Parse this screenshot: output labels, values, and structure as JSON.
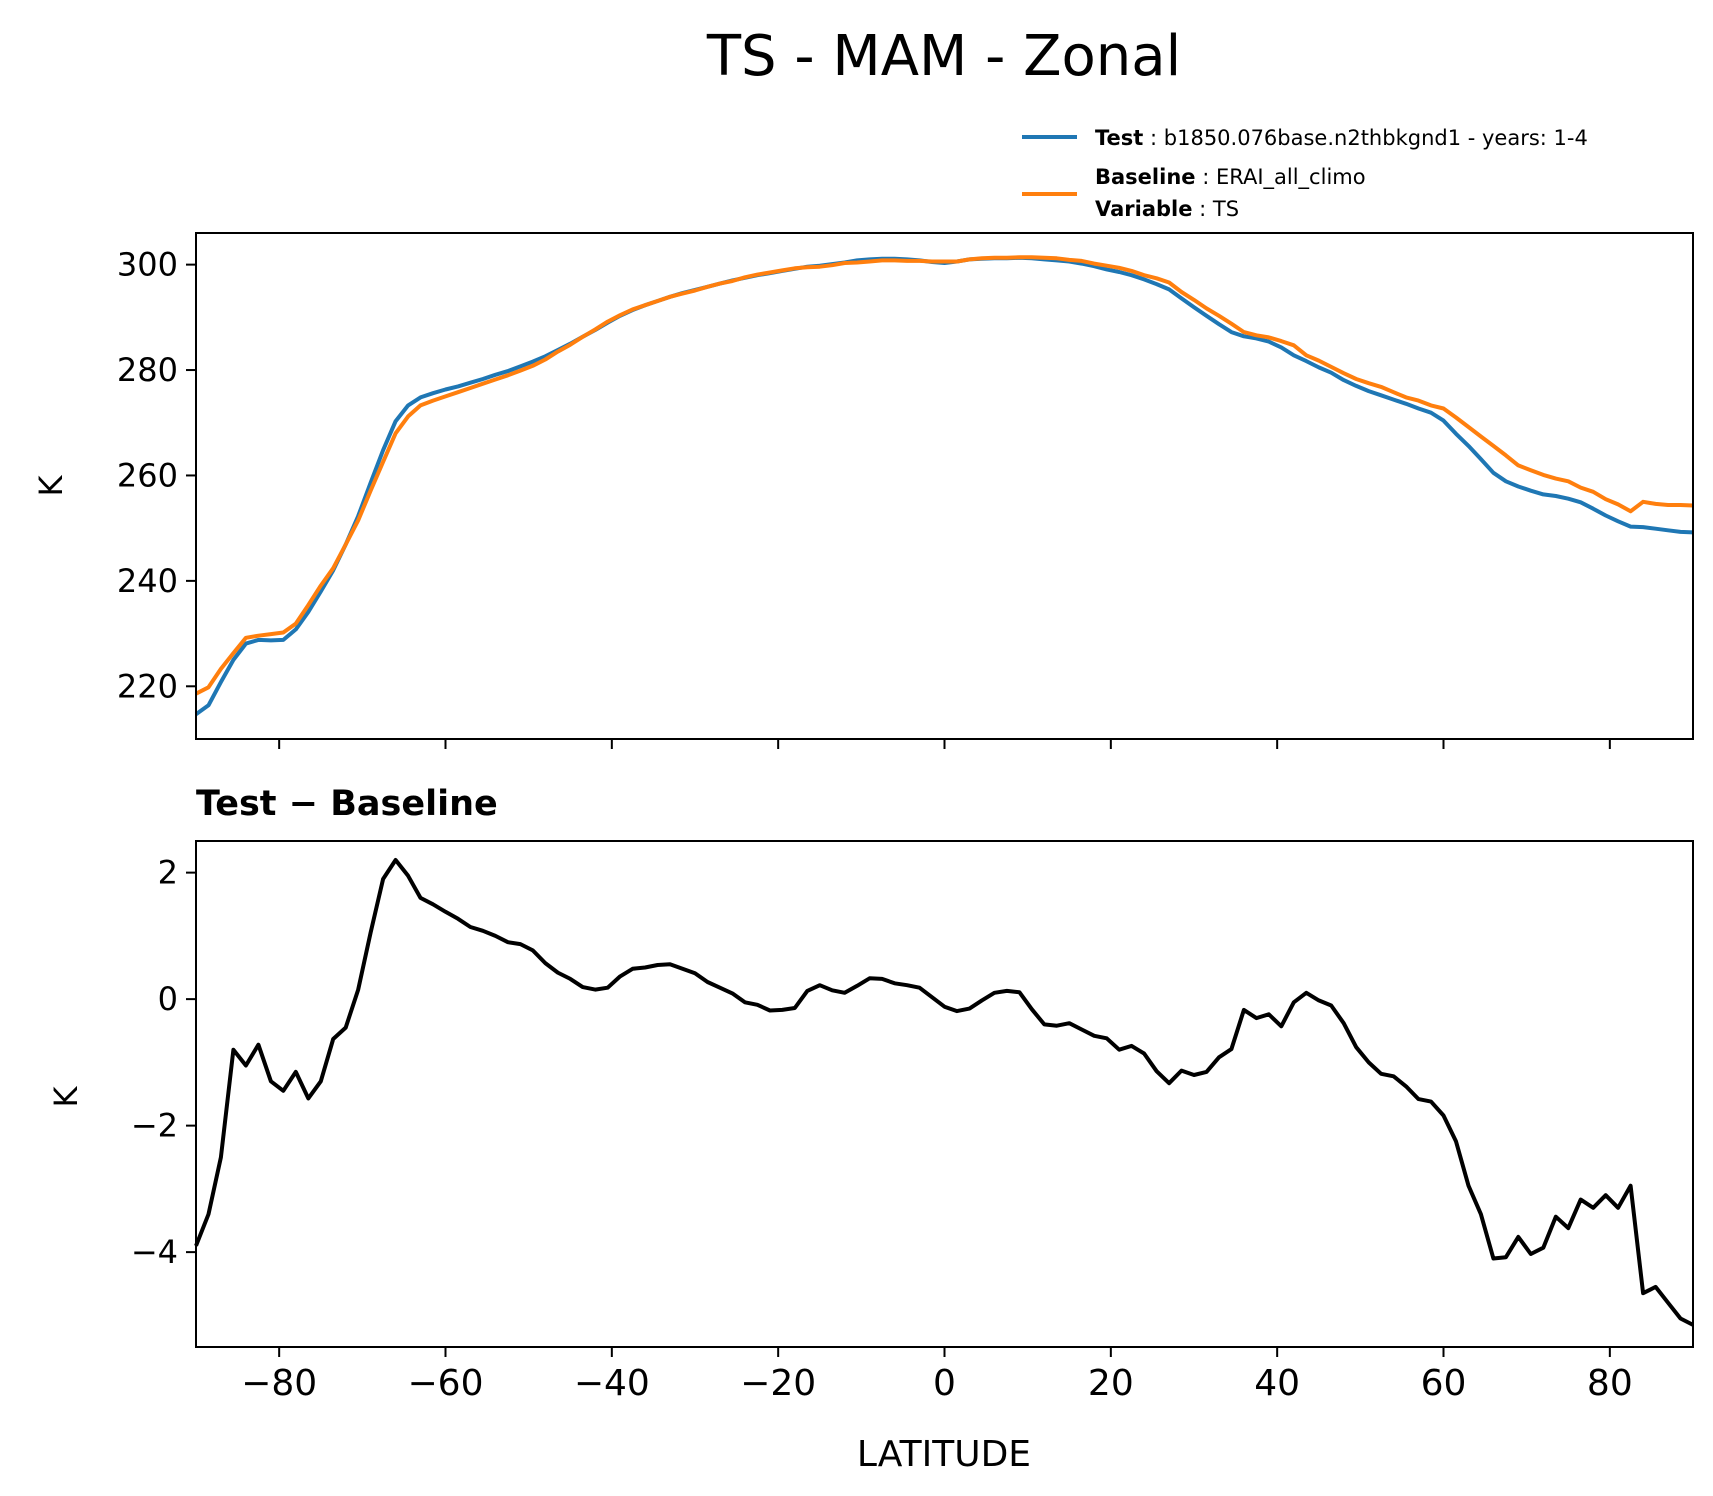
{
  "figure_title": "TS - MAM - Zonal",
  "legend": {
    "test": {
      "key": "Test",
      "value": ": b1850.076base.n2thbkgnd1 - years: 1-4"
    },
    "baseline": {
      "key": "Baseline",
      "value": ": ERAI_all_climo"
    },
    "variable": {
      "key": "Variable",
      "value": ": TS"
    }
  },
  "colors": {
    "test": "#1f77b4",
    "baseline": "#ff7f0e",
    "difference": "#000000"
  },
  "chart_data": [
    {
      "type": "line",
      "title": "",
      "xlabel": "",
      "ylabel": "K",
      "xlim": [
        -90,
        90
      ],
      "ylim": [
        210,
        306
      ],
      "xticks": [
        -80,
        -60,
        -40,
        -20,
        0,
        20,
        40,
        60,
        80
      ],
      "yticks": [
        220,
        240,
        260,
        280,
        300
      ],
      "ytick_labels": [
        "220",
        "240",
        "260",
        "280",
        "300"
      ],
      "x": [
        -90,
        -88.5,
        -87,
        -85.5,
        -84,
        -82.5,
        -81,
        -79.5,
        -78,
        -76.5,
        -75,
        -73.5,
        -72,
        -70.5,
        -69,
        -67.5,
        -66,
        -64.5,
        -63,
        -61.5,
        -60,
        -58.5,
        -57,
        -55.5,
        -54,
        -52.5,
        -51,
        -49.5,
        -48,
        -46.5,
        -45,
        -43.5,
        -42,
        -40.5,
        -39,
        -37.5,
        -36,
        -34.5,
        -33,
        -31.5,
        -30,
        -28.5,
        -27,
        -25.5,
        -24,
        -22.5,
        -21,
        -19.5,
        -18,
        -16.5,
        -15,
        -13.5,
        -12,
        -10.5,
        -9,
        -7.5,
        -6,
        -4.5,
        -3,
        -1.5,
        0,
        1.5,
        3,
        4.5,
        6,
        7.5,
        9,
        10.5,
        12,
        13.5,
        15,
        16.5,
        18,
        19.5,
        21,
        22.5,
        24,
        25.5,
        27,
        28.5,
        30,
        31.5,
        33,
        34.5,
        36,
        37.5,
        39,
        40.5,
        42,
        43.5,
        45,
        46.5,
        48,
        49.5,
        51,
        52.5,
        54,
        55.5,
        57,
        58.5,
        60,
        61.5,
        63,
        64.5,
        66,
        67.5,
        69,
        70.5,
        72,
        73.5,
        75,
        76.5,
        78,
        79.5,
        81,
        82.5,
        84,
        85.5,
        87,
        88.5,
        90
      ],
      "series": [
        {
          "name": "Test",
          "values": [
            214.7,
            216.4,
            220.8,
            225.0,
            228.1,
            228.8,
            228.7,
            228.8,
            230.8,
            234.1,
            238.0,
            242.0,
            246.9,
            252.3,
            258.6,
            264.8,
            270.3,
            273.3,
            274.8,
            275.6,
            276.3,
            276.9,
            277.6,
            278.3,
            279.1,
            279.8,
            280.7,
            281.6,
            282.6,
            283.8,
            285.0,
            286.3,
            287.6,
            289.0,
            290.3,
            291.4,
            292.3,
            293.1,
            293.9,
            294.6,
            295.2,
            295.8,
            296.4,
            297.0,
            297.5,
            298.0,
            298.4,
            298.8,
            299.2,
            299.6,
            299.8,
            300.1,
            300.4,
            300.8,
            301.0,
            301.1,
            301.1,
            301.0,
            300.8,
            300.5,
            300.3,
            300.6,
            301.0,
            301.1,
            301.2,
            301.2,
            301.3,
            301.2,
            301.0,
            300.8,
            300.6,
            300.2,
            299.7,
            299.1,
            298.6,
            298.0,
            297.2,
            296.3,
            295.3,
            293.6,
            291.9,
            290.3,
            288.7,
            287.2,
            286.4,
            286.0,
            285.4,
            284.3,
            282.8,
            281.7,
            280.5,
            279.5,
            278.1,
            277.0,
            276.0,
            275.2,
            274.4,
            273.6,
            272.7,
            271.9,
            270.4,
            267.9,
            265.6,
            263.1,
            260.5,
            258.9,
            257.9,
            257.1,
            256.4,
            256.1,
            255.6,
            254.9,
            253.7,
            252.4,
            251.3,
            250.3,
            250.2,
            249.9,
            249.6,
            249.3,
            249.2
          ]
        },
        {
          "name": "Baseline",
          "values": [
            218.6,
            219.8,
            223.3,
            226.3,
            229.2,
            229.6,
            229.9,
            230.2,
            231.9,
            235.4,
            239.1,
            242.4,
            246.9,
            251.5,
            257.1,
            262.6,
            268.0,
            271.2,
            273.3,
            274.2,
            275.0,
            275.8,
            276.6,
            277.4,
            278.2,
            279.0,
            279.9,
            280.8,
            282.0,
            283.5,
            284.8,
            286.3,
            287.7,
            289.2,
            290.4,
            291.5,
            292.3,
            293.1,
            293.9,
            294.5,
            295.1,
            295.8,
            296.4,
            296.9,
            297.6,
            298.1,
            298.5,
            298.9,
            299.3,
            299.5,
            299.6,
            299.9,
            300.3,
            300.4,
            300.6,
            300.8,
            300.8,
            300.7,
            300.7,
            300.6,
            300.6,
            300.6,
            301.0,
            301.2,
            301.3,
            301.3,
            301.4,
            301.4,
            301.3,
            301.2,
            300.9,
            300.7,
            300.2,
            299.8,
            299.4,
            298.8,
            298.0,
            297.4,
            296.6,
            294.8,
            293.3,
            291.7,
            290.3,
            288.8,
            287.2,
            286.6,
            286.2,
            285.5,
            284.7,
            282.8,
            281.8,
            280.6,
            279.4,
            278.3,
            277.5,
            276.8,
            275.8,
            274.8,
            274.2,
            273.3,
            272.7,
            271.0,
            269.2,
            267.4,
            265.6,
            263.8,
            261.9,
            261.0,
            260.1,
            259.4,
            258.9,
            257.7,
            256.9,
            255.5,
            254.5,
            253.2,
            255.0,
            254.6,
            254.4,
            254.4,
            254.3
          ]
        }
      ]
    },
    {
      "type": "line",
      "title": "Test − Baseline",
      "xlabel": "LATITUDE",
      "ylabel": "K",
      "xlim": [
        -90,
        90
      ],
      "ylim": [
        -5.5,
        2.5
      ],
      "xticks": [
        -80,
        -60,
        -40,
        -20,
        0,
        20,
        40,
        60,
        80
      ],
      "xtick_labels": [
        "−80",
        "−60",
        "−40",
        "−20",
        "0",
        "20",
        "40",
        "60",
        "80"
      ],
      "yticks": [
        -4,
        -2,
        0,
        2
      ],
      "ytick_labels": [
        "−4",
        "−2",
        "0",
        "2"
      ],
      "x": [
        -90,
        -88.5,
        -87,
        -85.5,
        -84,
        -82.5,
        -81,
        -79.5,
        -78,
        -76.5,
        -75,
        -73.5,
        -72,
        -70.5,
        -69,
        -67.5,
        -66,
        -64.5,
        -63,
        -61.5,
        -60,
        -58.5,
        -57,
        -55.5,
        -54,
        -52.5,
        -51,
        -49.5,
        -48,
        -46.5,
        -45,
        -43.5,
        -42,
        -40.5,
        -39,
        -37.5,
        -36,
        -34.5,
        -33,
        -31.5,
        -30,
        -28.5,
        -27,
        -25.5,
        -24,
        -22.5,
        -21,
        -19.5,
        -18,
        -16.5,
        -15,
        -13.5,
        -12,
        -10.5,
        -9,
        -7.5,
        -6,
        -4.5,
        -3,
        -1.5,
        0,
        1.5,
        3,
        4.5,
        6,
        7.5,
        9,
        10.5,
        12,
        13.5,
        15,
        16.5,
        18,
        19.5,
        21,
        22.5,
        24,
        25.5,
        27,
        28.5,
        30,
        31.5,
        33,
        34.5,
        36,
        37.5,
        39,
        40.5,
        42,
        43.5,
        45,
        46.5,
        48,
        49.5,
        51,
        52.5,
        54,
        55.5,
        57,
        58.5,
        60,
        61.5,
        63,
        64.5,
        66,
        67.5,
        69,
        70.5,
        72,
        73.5,
        75,
        76.5,
        78,
        79.5,
        81,
        82.5,
        84,
        85.5,
        87,
        88.5,
        90
      ],
      "series": [
        {
          "name": "Test − Baseline",
          "values": [
            -3.9,
            -3.4,
            -2.5,
            -0.8,
            -1.05,
            -0.72,
            -1.3,
            -1.45,
            -1.15,
            -1.57,
            -1.3,
            -0.63,
            -0.45,
            0.15,
            1.05,
            1.9,
            2.2,
            1.95,
            1.6,
            1.5,
            1.38,
            1.27,
            1.14,
            1.08,
            1.0,
            0.9,
            0.87,
            0.77,
            0.57,
            0.42,
            0.32,
            0.19,
            0.15,
            0.18,
            0.36,
            0.48,
            0.5,
            0.54,
            0.55,
            0.48,
            0.41,
            0.27,
            0.18,
            0.09,
            -0.05,
            -0.09,
            -0.18,
            -0.17,
            -0.14,
            0.13,
            0.22,
            0.14,
            0.1,
            0.21,
            0.33,
            0.32,
            0.25,
            0.22,
            0.18,
            0.03,
            -0.12,
            -0.19,
            -0.15,
            -0.02,
            0.1,
            0.13,
            0.11,
            -0.16,
            -0.4,
            -0.42,
            -0.38,
            -0.48,
            -0.58,
            -0.62,
            -0.8,
            -0.74,
            -0.86,
            -1.14,
            -1.33,
            -1.13,
            -1.2,
            -1.15,
            -0.92,
            -0.79,
            -0.17,
            -0.3,
            -0.24,
            -0.43,
            -0.05,
            0.1,
            -0.02,
            -0.1,
            -0.38,
            -0.76,
            -1.0,
            -1.18,
            -1.22,
            -1.38,
            -1.58,
            -1.62,
            -1.84,
            -2.25,
            -2.95,
            -3.4,
            -4.1,
            -4.08,
            -3.76,
            -4.03,
            -3.93,
            -3.44,
            -3.62,
            -3.17,
            -3.3,
            -3.1,
            -3.3,
            -2.95,
            -4.65,
            -4.55,
            -4.8,
            -5.05,
            -5.15
          ]
        }
      ]
    }
  ]
}
